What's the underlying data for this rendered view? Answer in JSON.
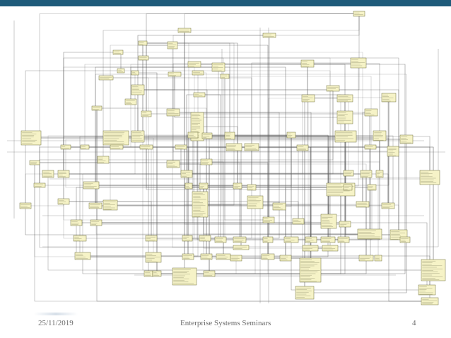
{
  "slide": {
    "footer": {
      "date": "25/11/2019",
      "title": "Enterprise Systems Seminars",
      "page_number": "4"
    }
  },
  "diagram": {
    "box_fill": "#f6f3c7",
    "box_border": "#6f6f3a",
    "line_color": "#5f5f5f",
    "header_bar_color": "#1f5b7a"
  }
}
